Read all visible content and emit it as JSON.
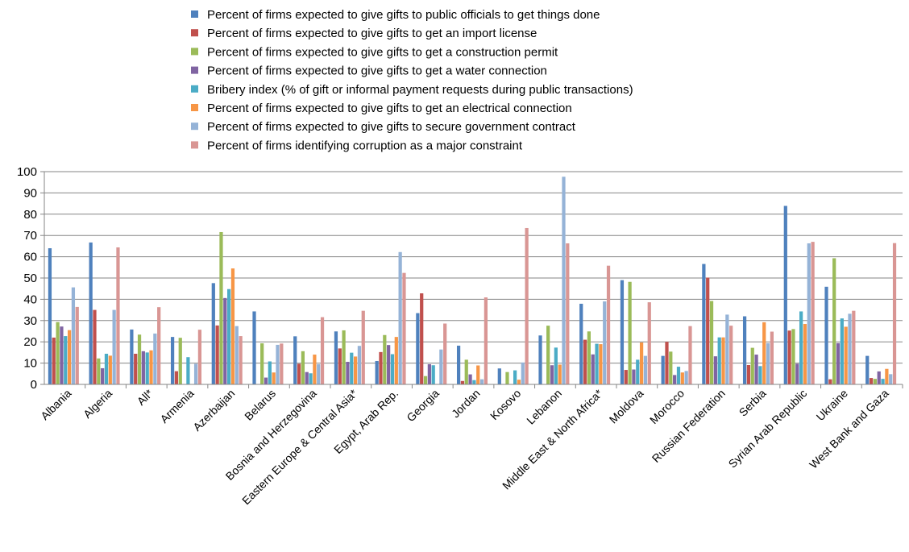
{
  "chart_data": {
    "type": "bar",
    "title": "",
    "xlabel": "",
    "ylabel": "",
    "ylim": [
      0,
      100
    ],
    "yticks": [
      0,
      10,
      20,
      30,
      40,
      50,
      60,
      70,
      80,
      90,
      100
    ],
    "grid": true,
    "legend_position": "top",
    "categories": [
      "Albania",
      "Algeria",
      "All*",
      "Armenia",
      "Azerbaijan",
      "Belarus",
      "Bosnia and Herzegovina",
      "Eastern Europe & Central Asia*",
      "Egypt, Arab Rep.",
      "Georgia",
      "Jordan",
      "Kosovo",
      "Lebanon",
      "Middle East & North Africa*",
      "Moldova",
      "Morocco",
      "Russian Federation",
      "Serbia",
      "Syrian Arab Republic",
      "Ukraine",
      "West Bank and Gaza"
    ],
    "series": [
      {
        "name": "Percent of firms expected to give gifts to public officials to get things done",
        "color": "#4f81bd",
        "values": [
          64,
          66.7,
          25.8,
          22.3,
          47.6,
          34.3,
          22.6,
          24.9,
          11,
          33.5,
          18.2,
          7.5,
          23,
          37.9,
          49,
          13.4,
          56.6,
          32,
          83.9,
          45.9,
          13.4
        ]
      },
      {
        "name": "Percent of firms expected to give gifts to get an import license",
        "color": "#c0504d",
        "values": [
          22,
          35,
          14.4,
          6.2,
          27.7,
          0,
          9.7,
          16.9,
          15.2,
          42.8,
          1.6,
          0,
          0,
          21,
          6.8,
          20,
          50.2,
          9.1,
          25.3,
          2.4,
          3
        ]
      },
      {
        "name": "Percent of firms expected to give gifts to get a construction permit",
        "color": "#9bbb59",
        "values": [
          29.3,
          12.2,
          23.4,
          21.9,
          71.6,
          19.3,
          15.6,
          25.4,
          23.2,
          3.9,
          11.6,
          5.8,
          27.6,
          24.9,
          48.2,
          15.4,
          39.2,
          17.2,
          26,
          59.3,
          2.6
        ]
      },
      {
        "name": "Percent of firms expected to give gifts to get a water connection",
        "color": "#8064a2",
        "values": [
          27.2,
          7.6,
          15.6,
          0,
          40.6,
          3.2,
          5.8,
          10.6,
          18.5,
          9.5,
          4.7,
          0,
          9,
          14.1,
          7,
          4.4,
          13.2,
          14,
          9.7,
          19.4,
          6.1
        ]
      },
      {
        "name": "Bribery index (% of gift or informal payment requests during public transactions)",
        "color": "#4bacc6",
        "values": [
          22.7,
          14.4,
          15,
          12.8,
          44.8,
          10.8,
          5.2,
          14.9,
          14.2,
          9,
          2,
          6.6,
          17.3,
          19.1,
          11.6,
          8.3,
          22.1,
          8.6,
          34.3,
          31,
          2.6
        ]
      },
      {
        "name": "Percent of firms expected to give gifts to get an electrical connection",
        "color": "#f79646",
        "values": [
          25.5,
          13.5,
          16,
          0,
          54.5,
          5.6,
          14,
          13.1,
          22.3,
          0,
          8.9,
          2.2,
          9.3,
          18.9,
          19.7,
          5.6,
          22.1,
          29.2,
          28.4,
          27.1,
          7.3
        ]
      },
      {
        "name": "Percent of firms expected to give gifts to secure government contract",
        "color": "#95b3d7",
        "values": [
          45.6,
          35,
          23.9,
          9.7,
          27.4,
          18.6,
          9.5,
          18.1,
          62.2,
          16.4,
          2.4,
          10.3,
          97.6,
          39,
          13.4,
          6.3,
          32.8,
          19.4,
          66.3,
          33.2,
          4.8
        ]
      },
      {
        "name": "Percent of firms identifying corruption as a major constraint",
        "color": "#d99694",
        "values": [
          36.4,
          64.4,
          36.3,
          25.7,
          22.7,
          19.2,
          31.6,
          34.6,
          52.4,
          28.6,
          40.9,
          73.5,
          66.3,
          55.8,
          38.6,
          27.4,
          27.6,
          24.8,
          67,
          34.6,
          66.4
        ]
      }
    ]
  }
}
